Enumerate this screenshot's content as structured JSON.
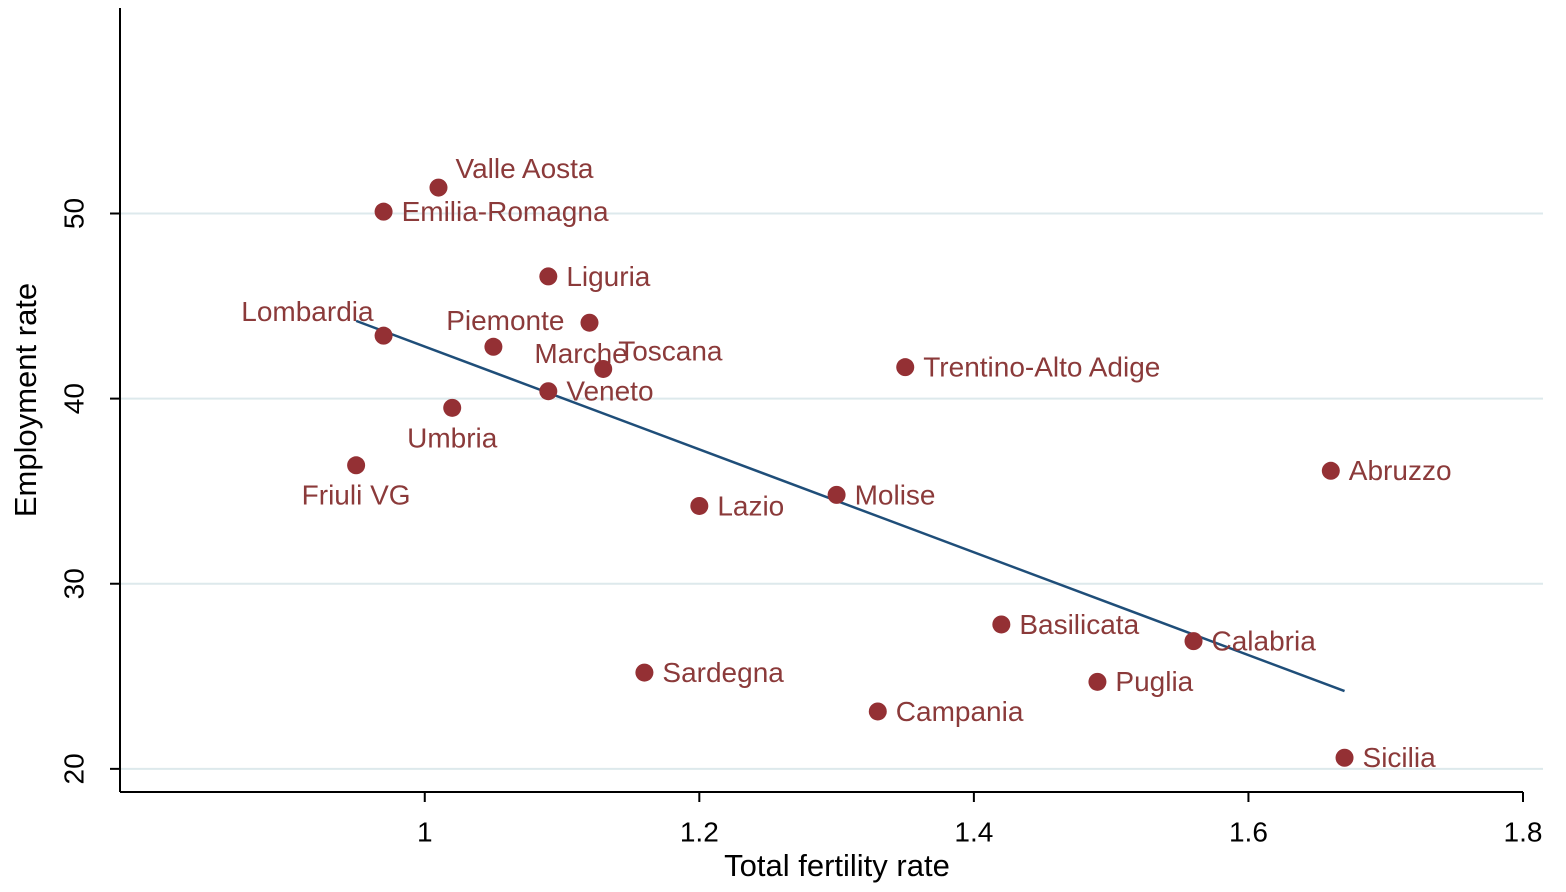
{
  "chart_data": {
    "type": "scatter",
    "x_label": "Total fertility rate",
    "y_label": "Employment rate",
    "labels": [
      "Valle Aosta",
      "Emilia-Romagna",
      "Liguria",
      "Piemonte",
      "Lombardia",
      "Marche",
      "Toscana",
      "Trentino-Alto Adige",
      "Veneto",
      "Umbria",
      "Friuli VG",
      "Abruzzo",
      "Molise",
      "Lazio",
      "Basilicata",
      "Calabria",
      "Sardegna",
      "Puglia",
      "Campania",
      "Sicilia"
    ],
    "x": [
      1.01,
      0.97,
      1.09,
      1.12,
      0.97,
      1.05,
      1.13,
      1.35,
      1.09,
      1.02,
      0.95,
      1.66,
      1.3,
      1.2,
      1.42,
      1.56,
      1.16,
      1.49,
      1.33,
      1.67
    ],
    "y": [
      51.4,
      50.1,
      46.6,
      44.1,
      43.4,
      42.8,
      41.6,
      41.7,
      40.4,
      39.5,
      36.4,
      36.1,
      34.8,
      34.2,
      27.8,
      26.9,
      25.2,
      24.7,
      23.1,
      20.6
    ],
    "color": "#943034",
    "fit_line": {
      "x": [
        0.95,
        1.67
      ],
      "y": [
        44.2,
        24.2
      ],
      "color": "#1f4e79"
    },
    "xlim": [
      0.778,
      1.8
    ],
    "ylim": [
      18.75,
      61.1
    ],
    "xticks": [
      1,
      1.2,
      1.4,
      1.6,
      1.8
    ],
    "yticks": [
      20,
      30,
      40,
      50
    ],
    "grid": true
  }
}
